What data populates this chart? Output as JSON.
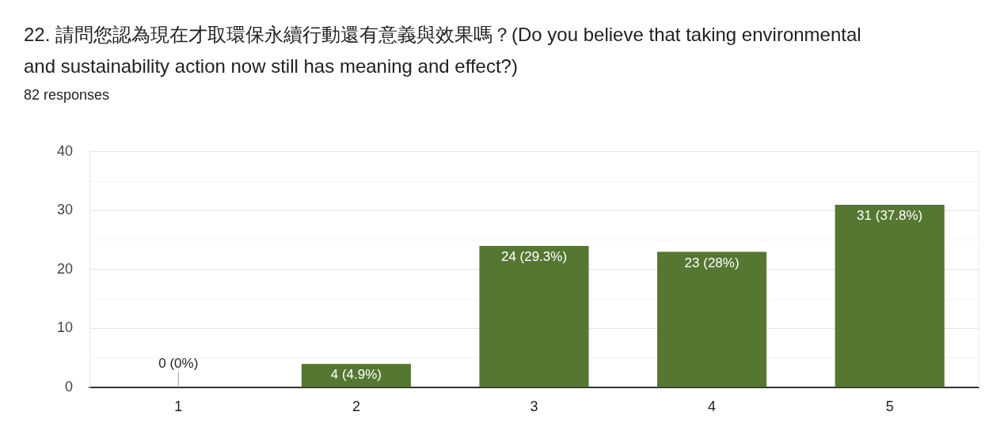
{
  "chart_data": {
    "type": "bar",
    "title": "22. 請問您認為現在才取環保永續行動還有意義與效果嗎？(Do you believe that taking environmental and sustainability action now still has meaning and effect?)",
    "subtitle": "82 responses",
    "categories": [
      "1",
      "2",
      "3",
      "4",
      "5"
    ],
    "values": [
      0,
      4,
      24,
      23,
      31
    ],
    "value_labels": [
      "0 (0%)",
      "4 (4.9%)",
      "24 (29.3%)",
      "23 (28%)",
      "31 (37.8%)"
    ],
    "color": "#557732",
    "ylim": [
      0,
      40
    ],
    "yticks": [
      0,
      {
        "value": 5,
        "label": null
      },
      10,
      {
        "value": 15,
        "label": null
      },
      20,
      {
        "value": 25,
        "label": null
      },
      30,
      {
        "value": 35,
        "label": null
      },
      40
    ],
    "grid": "y"
  }
}
